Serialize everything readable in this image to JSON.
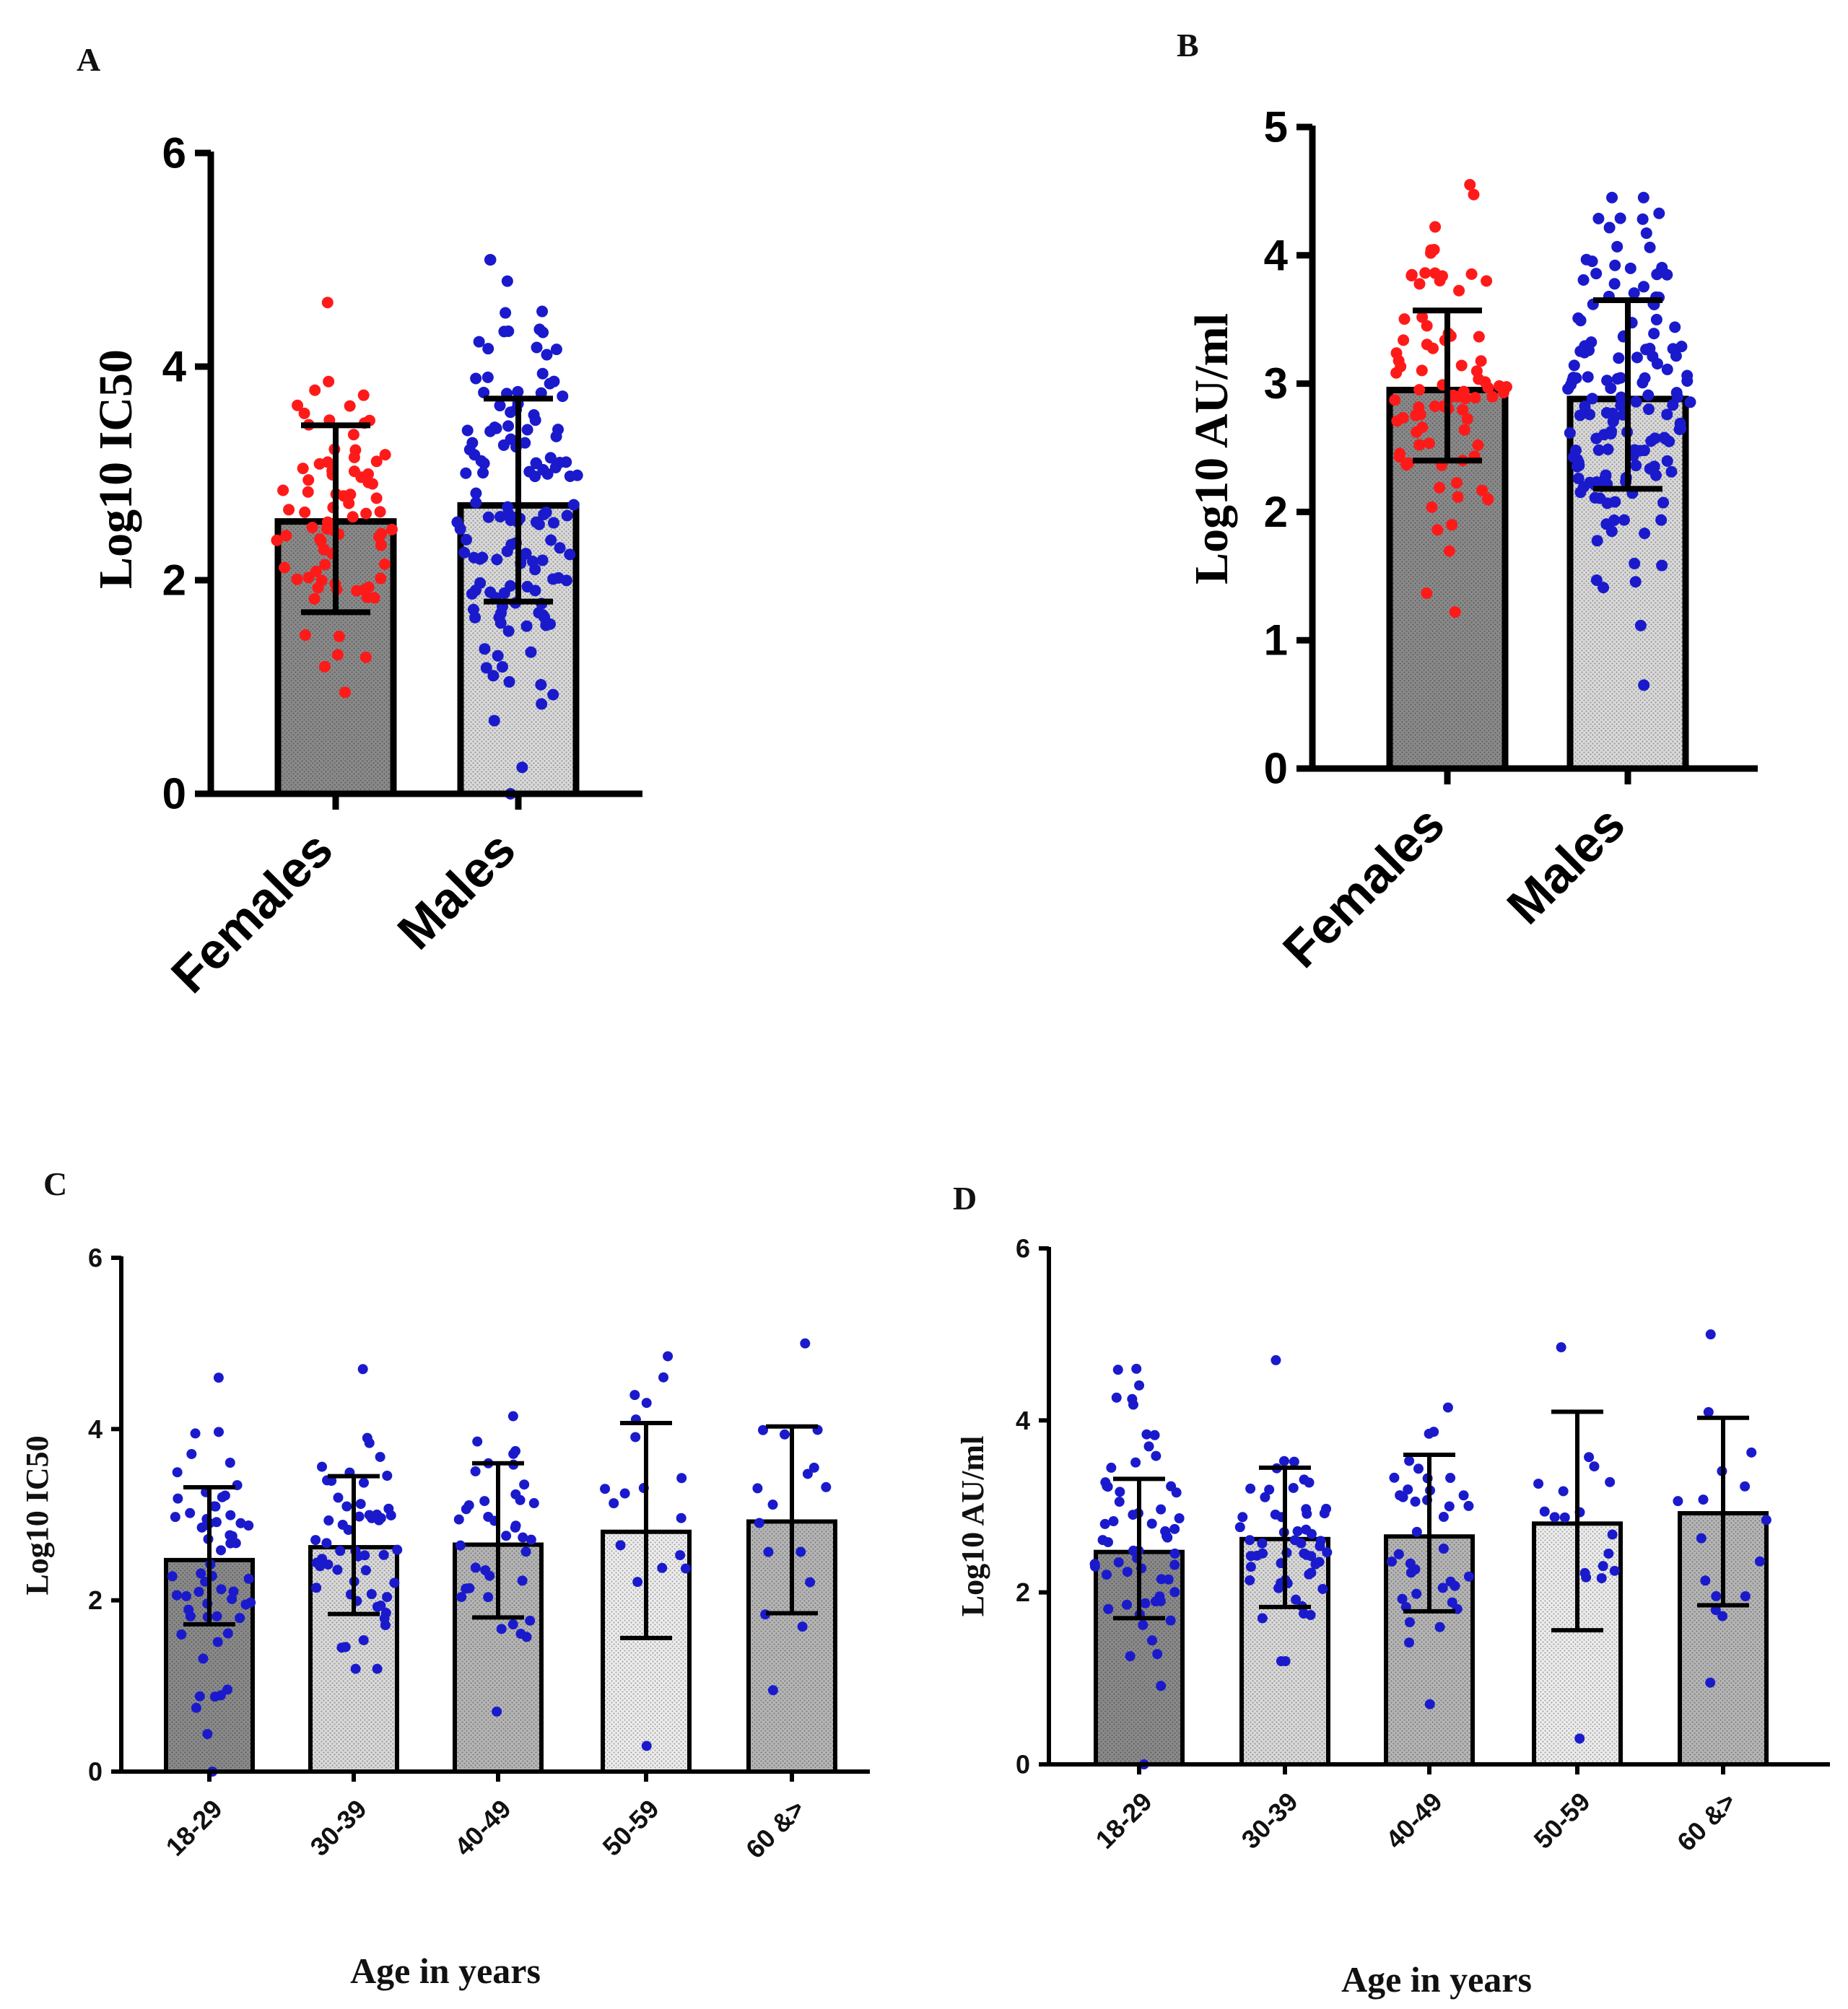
{
  "colors": {
    "female_dot": "#ff1a1a",
    "male_dot": "#1a1acc",
    "age_dot": "#1a1acc",
    "axis": "#000000",
    "bar_dark": "#8a8a8a",
    "bar_light": "#d9d9d9",
    "bar_mid": "#b5b5b5",
    "bar_lightest": "#ececec"
  },
  "chart_data": [
    {
      "panel": "A",
      "type": "bar",
      "title": "",
      "xlabel": "",
      "ylabel": "Log10 IC50",
      "ylim": [
        0,
        6
      ],
      "yticks": [
        "0",
        "2",
        "4",
        "6"
      ],
      "categories": [
        "Females",
        "Males"
      ],
      "values": [
        2.55,
        2.7
      ],
      "error_low": [
        1.7,
        1.8
      ],
      "error_high": [
        3.45,
        3.7
      ],
      "points_range": [
        [
          0.95,
          4.6
        ],
        [
          0.0,
          5.0
        ]
      ],
      "points_count": [
        80,
        140
      ],
      "point_colors": [
        "female_dot",
        "male_dot"
      ],
      "bar_shades": [
        "bar_dark",
        "bar_light"
      ]
    },
    {
      "panel": "B",
      "type": "bar",
      "title": "",
      "xlabel": "",
      "ylabel": "Log10 AU/ml",
      "ylim": [
        0,
        5
      ],
      "yticks": [
        "0",
        "1",
        "2",
        "3",
        "4",
        "5"
      ],
      "categories": [
        "Females",
        "Males"
      ],
      "values": [
        2.95,
        2.88
      ],
      "error_low": [
        2.4,
        2.18
      ],
      "error_high": [
        3.57,
        3.65
      ],
      "points_range": [
        [
          1.22,
          4.55
        ],
        [
          0.65,
          4.45
        ]
      ],
      "points_count": [
        85,
        150
      ],
      "point_colors": [
        "female_dot",
        "male_dot"
      ],
      "bar_shades": [
        "bar_dark",
        "bar_light"
      ]
    },
    {
      "panel": "C",
      "type": "bar",
      "title": "",
      "xlabel": "Age in years",
      "ylabel": "Log10 IC50",
      "ylim": [
        0,
        6
      ],
      "yticks": [
        "0",
        "2",
        "4",
        "6"
      ],
      "categories": [
        "18-29",
        "30-39",
        "40-49",
        "50-59",
        "60 &>"
      ],
      "values": [
        2.47,
        2.62,
        2.65,
        2.8,
        2.92
      ],
      "error_low": [
        1.72,
        1.84,
        1.8,
        1.56,
        1.85
      ],
      "error_high": [
        3.32,
        3.45,
        3.6,
        4.07,
        4.03
      ],
      "points_range": [
        [
          0.0,
          4.6
        ],
        [
          1.2,
          4.7
        ],
        [
          0.7,
          4.15
        ],
        [
          0.3,
          4.85
        ],
        [
          0.95,
          5.0
        ]
      ],
      "points_count": [
        60,
        55,
        38,
        18,
        16
      ],
      "point_colors": [
        "age_dot",
        "age_dot",
        "age_dot",
        "age_dot",
        "age_dot"
      ],
      "bar_shades": [
        "bar_dark",
        "bar_light",
        "bar_mid",
        "bar_lightest",
        "bar_mid"
      ]
    },
    {
      "panel": "D",
      "type": "bar",
      "title": "",
      "xlabel": "Age in years",
      "ylabel": "Log10 AU/ml",
      "ylim": [
        0,
        6
      ],
      "yticks": [
        "0",
        "2",
        "4",
        "6"
      ],
      "categories": [
        "18-29",
        "30-39",
        "40-49",
        "50-59",
        "60 &>"
      ],
      "values": [
        2.47,
        2.62,
        2.65,
        2.8,
        2.92
      ],
      "error_low": [
        1.7,
        1.83,
        1.78,
        1.56,
        1.85
      ],
      "error_high": [
        3.32,
        3.45,
        3.6,
        4.1,
        4.03
      ],
      "points_range": [
        [
          0.0,
          4.6
        ],
        [
          1.2,
          4.7
        ],
        [
          0.7,
          4.15
        ],
        [
          0.3,
          4.85
        ],
        [
          0.95,
          5.0
        ]
      ],
      "points_count": [
        60,
        55,
        38,
        18,
        16
      ],
      "point_colors": [
        "age_dot",
        "age_dot",
        "age_dot",
        "age_dot",
        "age_dot"
      ],
      "bar_shades": [
        "bar_dark",
        "bar_light",
        "bar_mid",
        "bar_lightest",
        "bar_mid"
      ]
    }
  ]
}
